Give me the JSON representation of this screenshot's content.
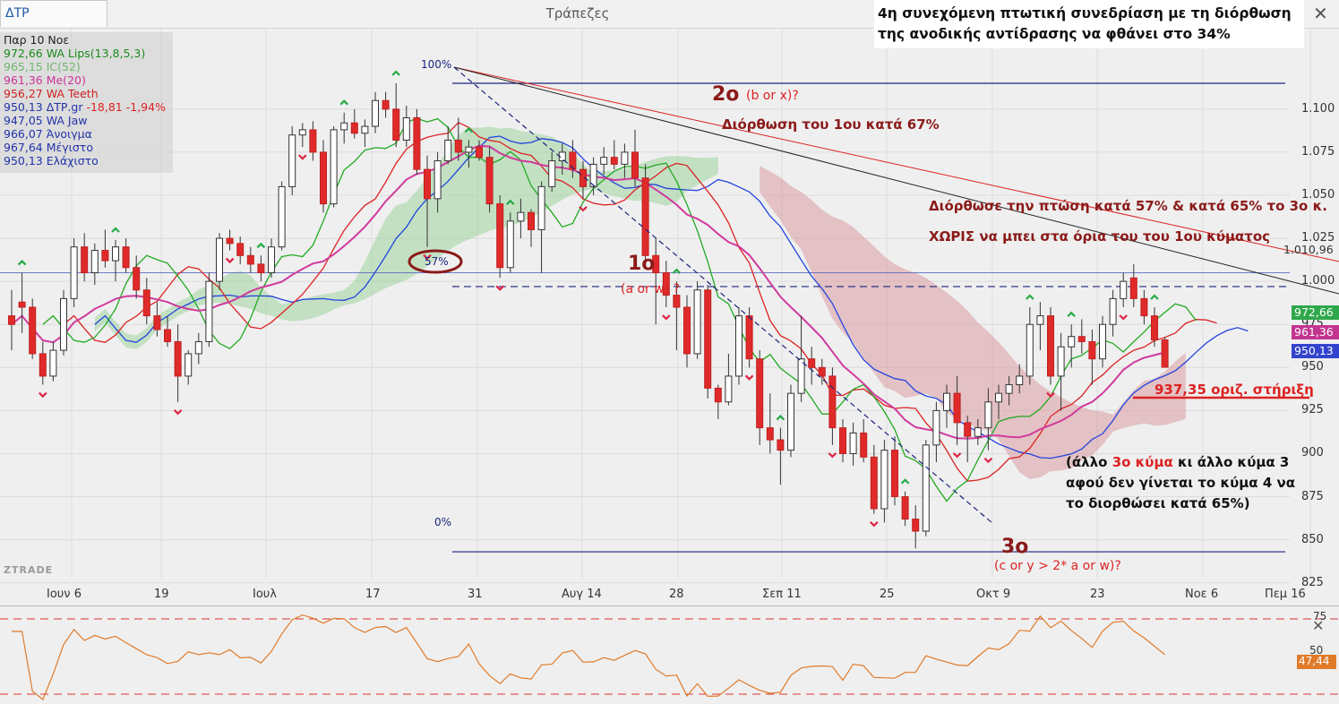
{
  "app": {
    "tab_label": "ΔΤΡ",
    "window_title": "Τράπεζες"
  },
  "note": {
    "line1": "4η συνεχόμενη πτωτική συνεδρίαση με τη διόρθωση",
    "line2": "της ανοδικής αντίδρασης να φθάνει στο 34%"
  },
  "legend": [
    {
      "text": "Παρ 10 Νοε",
      "color": "#222222"
    },
    {
      "text": "972,66 WA Lips(13,8,5,3)",
      "color": "#1a8a1a"
    },
    {
      "text": "965,15 IC(52)",
      "color": "#6fb86f"
    },
    {
      "text": "961,36 Me(20)",
      "color": "#cc3399"
    },
    {
      "text": "956,27 WA  Teeth",
      "color": "#cc2222"
    },
    {
      "text": "950,13 ΔΤΡ.gr -18,81 -1,94%",
      "color": "#2233aa"
    },
    {
      "text": "947,05 WA Jaw",
      "color": "#2233aa"
    },
    {
      "text": "966,07 Άνοιγμα",
      "color": "#2233aa"
    },
    {
      "text": "967,64 Μέγιστο",
      "color": "#2233aa"
    },
    {
      "text": "950,13 Ελάχιστο",
      "color": "#2233aa"
    }
  ],
  "change_color": "#dd2222",
  "annotations": {
    "fib_100": "100%",
    "fib_57": "57%",
    "fib_0": "0%",
    "wave2": "2ο",
    "wave2_sub": "(b or x)?",
    "wave2_corr": "Διόρθωση του 1ου κατά 67%",
    "wave1": "1ο",
    "wave1_sub": "(a or w) ?",
    "wave3": "3ο",
    "wave3_sub": "(c or y > 2* a or w)?",
    "corr_line1": "Διόρθωσε την πτώση κατά 57% & κατά 65% το 3ο κ.",
    "corr_line2": "ΧΩΡΙΣ να μπει στα όρια του του 1ου κύματος",
    "support": "937,35 οριζ. στήριξη",
    "other1_pre": "(άλλο ",
    "other1_red": "3ο κύμα",
    "other1_post": " κι άλλο κύμα 3",
    "other2": "αφού δεν γίνεται το κύμα 4 να",
    "other3": "το διορθώσει κατά 65%)",
    "watermark": "ZTRADE"
  },
  "colors": {
    "dark_red": "#8b1a1a",
    "red": "#dd2222",
    "navy": "#1a237e",
    "cloud": "#9fd39f",
    "pink_cloud": "#d99aa0"
  },
  "price_axis": {
    "ticks": [
      "1.100",
      "1.075",
      "1.050",
      "1.025",
      "1.000",
      "975",
      "950",
      "925",
      "900",
      "875",
      "850",
      "825"
    ],
    "extra_label": "1.010,96",
    "tags": [
      {
        "text": "972,66",
        "color": "#2ea84a"
      },
      {
        "text": "961,36",
        "color": "#c2358f"
      },
      {
        "text": "950,13",
        "color": "#3344cc"
      }
    ]
  },
  "time_axis": [
    "Ιουν 6",
    "19",
    "Ιουλ",
    "17",
    "31",
    "Αυγ 14",
    "28",
    "Σεπ 11",
    "25",
    "Οκτ 9",
    "23",
    "Νοε 6",
    "Πεμ 16"
  ],
  "oscillator": {
    "upper_label": "75",
    "mid_label": "50",
    "last_value": "47,44",
    "tag_color": "#e07b2a"
  },
  "chart_data": {
    "type": "candlestick",
    "ylim": [
      816,
      1128
    ],
    "series_name": "ΔΤΡ.gr",
    "candles": [
      {
        "o": 980,
        "h": 995,
        "l": 960,
        "c": 975
      },
      {
        "o": 988,
        "h": 1005,
        "l": 970,
        "c": 985
      },
      {
        "o": 985,
        "h": 990,
        "l": 955,
        "c": 958
      },
      {
        "o": 958,
        "h": 965,
        "l": 940,
        "c": 945
      },
      {
        "o": 945,
        "h": 965,
        "l": 942,
        "c": 960
      },
      {
        "o": 960,
        "h": 995,
        "l": 957,
        "c": 990
      },
      {
        "o": 990,
        "h": 1025,
        "l": 985,
        "c": 1020
      },
      {
        "o": 1020,
        "h": 1028,
        "l": 1000,
        "c": 1005
      },
      {
        "o": 1005,
        "h": 1022,
        "l": 998,
        "c": 1018
      },
      {
        "o": 1018,
        "h": 1030,
        "l": 1008,
        "c": 1012
      },
      {
        "o": 1012,
        "h": 1024,
        "l": 1000,
        "c": 1020
      },
      {
        "o": 1020,
        "h": 1025,
        "l": 1005,
        "c": 1008
      },
      {
        "o": 1008,
        "h": 1015,
        "l": 990,
        "c": 995
      },
      {
        "o": 995,
        "h": 1002,
        "l": 975,
        "c": 980
      },
      {
        "o": 980,
        "h": 988,
        "l": 968,
        "c": 972
      },
      {
        "o": 972,
        "h": 980,
        "l": 962,
        "c": 965
      },
      {
        "o": 965,
        "h": 975,
        "l": 930,
        "c": 945
      },
      {
        "o": 945,
        "h": 960,
        "l": 940,
        "c": 958
      },
      {
        "o": 958,
        "h": 970,
        "l": 952,
        "c": 965
      },
      {
        "o": 965,
        "h": 1005,
        "l": 962,
        "c": 1000
      },
      {
        "o": 1000,
        "h": 1028,
        "l": 995,
        "c": 1025
      },
      {
        "o": 1025,
        "h": 1030,
        "l": 1018,
        "c": 1022
      },
      {
        "o": 1022,
        "h": 1026,
        "l": 1010,
        "c": 1015
      },
      {
        "o": 1015,
        "h": 1020,
        "l": 1005,
        "c": 1010
      },
      {
        "o": 1010,
        "h": 1015,
        "l": 1000,
        "c": 1005
      },
      {
        "o": 1005,
        "h": 1025,
        "l": 1002,
        "c": 1020
      },
      {
        "o": 1020,
        "h": 1058,
        "l": 1018,
        "c": 1055
      },
      {
        "o": 1055,
        "h": 1090,
        "l": 1050,
        "c": 1085
      },
      {
        "o": 1085,
        "h": 1092,
        "l": 1078,
        "c": 1088
      },
      {
        "o": 1088,
        "h": 1093,
        "l": 1070,
        "c": 1075
      },
      {
        "o": 1075,
        "h": 1082,
        "l": 1040,
        "c": 1045
      },
      {
        "o": 1045,
        "h": 1090,
        "l": 1043,
        "c": 1088
      },
      {
        "o": 1088,
        "h": 1098,
        "l": 1080,
        "c": 1092
      },
      {
        "o": 1092,
        "h": 1100,
        "l": 1083,
        "c": 1086
      },
      {
        "o": 1086,
        "h": 1094,
        "l": 1078,
        "c": 1090
      },
      {
        "o": 1090,
        "h": 1110,
        "l": 1086,
        "c": 1105
      },
      {
        "o": 1105,
        "h": 1110,
        "l": 1095,
        "c": 1100
      },
      {
        "o": 1100,
        "h": 1115,
        "l": 1078,
        "c": 1082
      },
      {
        "o": 1082,
        "h": 1102,
        "l": 1078,
        "c": 1095
      },
      {
        "o": 1095,
        "h": 1100,
        "l": 1062,
        "c": 1065
      },
      {
        "o": 1065,
        "h": 1073,
        "l": 1020,
        "c": 1048
      },
      {
        "o": 1048,
        "h": 1075,
        "l": 1040,
        "c": 1070
      },
      {
        "o": 1070,
        "h": 1090,
        "l": 1068,
        "c": 1082
      },
      {
        "o": 1082,
        "h": 1095,
        "l": 1070,
        "c": 1075
      },
      {
        "o": 1075,
        "h": 1082,
        "l": 1066,
        "c": 1078
      },
      {
        "o": 1078,
        "h": 1082,
        "l": 1070,
        "c": 1072
      },
      {
        "o": 1072,
        "h": 1078,
        "l": 1040,
        "c": 1045
      },
      {
        "o": 1045,
        "h": 1050,
        "l": 1002,
        "c": 1008
      },
      {
        "o": 1008,
        "h": 1040,
        "l": 1005,
        "c": 1035
      },
      {
        "o": 1035,
        "h": 1048,
        "l": 1025,
        "c": 1040
      },
      {
        "o": 1040,
        "h": 1042,
        "l": 1020,
        "c": 1030
      },
      {
        "o": 1030,
        "h": 1058,
        "l": 1005,
        "c": 1055
      },
      {
        "o": 1055,
        "h": 1075,
        "l": 1052,
        "c": 1070
      },
      {
        "o": 1070,
        "h": 1080,
        "l": 1062,
        "c": 1075
      },
      {
        "o": 1075,
        "h": 1082,
        "l": 1060,
        "c": 1065
      },
      {
        "o": 1065,
        "h": 1070,
        "l": 1048,
        "c": 1055
      },
      {
        "o": 1055,
        "h": 1072,
        "l": 1050,
        "c": 1068
      },
      {
        "o": 1068,
        "h": 1078,
        "l": 1062,
        "c": 1072
      },
      {
        "o": 1072,
        "h": 1082,
        "l": 1065,
        "c": 1068
      },
      {
        "o": 1068,
        "h": 1080,
        "l": 1060,
        "c": 1075
      },
      {
        "o": 1075,
        "h": 1088,
        "l": 1055,
        "c": 1060
      },
      {
        "o": 1060,
        "h": 1068,
        "l": 1010,
        "c": 1015
      },
      {
        "o": 1015,
        "h": 1025,
        "l": 975,
        "c": 1005
      },
      {
        "o": 1005,
        "h": 1012,
        "l": 985,
        "c": 992
      },
      {
        "o": 992,
        "h": 1000,
        "l": 960,
        "c": 985
      },
      {
        "o": 985,
        "h": 992,
        "l": 950,
        "c": 958
      },
      {
        "o": 958,
        "h": 1000,
        "l": 955,
        "c": 995
      },
      {
        "o": 995,
        "h": 998,
        "l": 932,
        "c": 938
      },
      {
        "o": 938,
        "h": 940,
        "l": 920,
        "c": 930
      },
      {
        "o": 930,
        "h": 958,
        "l": 928,
        "c": 945
      },
      {
        "o": 945,
        "h": 985,
        "l": 940,
        "c": 980
      },
      {
        "o": 980,
        "h": 985,
        "l": 950,
        "c": 955
      },
      {
        "o": 955,
        "h": 960,
        "l": 905,
        "c": 915
      },
      {
        "o": 915,
        "h": 935,
        "l": 900,
        "c": 908
      },
      {
        "o": 908,
        "h": 915,
        "l": 882,
        "c": 902
      },
      {
        "o": 902,
        "h": 940,
        "l": 898,
        "c": 935
      },
      {
        "o": 935,
        "h": 980,
        "l": 930,
        "c": 955
      },
      {
        "o": 955,
        "h": 962,
        "l": 940,
        "c": 950
      },
      {
        "o": 950,
        "h": 955,
        "l": 940,
        "c": 945
      },
      {
        "o": 945,
        "h": 950,
        "l": 905,
        "c": 915
      },
      {
        "o": 915,
        "h": 920,
        "l": 895,
        "c": 900
      },
      {
        "o": 900,
        "h": 918,
        "l": 893,
        "c": 912
      },
      {
        "o": 912,
        "h": 920,
        "l": 895,
        "c": 898
      },
      {
        "o": 898,
        "h": 905,
        "l": 865,
        "c": 868
      },
      {
        "o": 868,
        "h": 908,
        "l": 860,
        "c": 902
      },
      {
        "o": 902,
        "h": 910,
        "l": 870,
        "c": 875
      },
      {
        "o": 875,
        "h": 878,
        "l": 858,
        "c": 862
      },
      {
        "o": 862,
        "h": 870,
        "l": 845,
        "c": 855
      },
      {
        "o": 855,
        "h": 908,
        "l": 852,
        "c": 905
      },
      {
        "o": 905,
        "h": 930,
        "l": 895,
        "c": 925
      },
      {
        "o": 925,
        "h": 940,
        "l": 915,
        "c": 935
      },
      {
        "o": 935,
        "h": 945,
        "l": 905,
        "c": 918
      },
      {
        "o": 918,
        "h": 922,
        "l": 895,
        "c": 910
      },
      {
        "o": 910,
        "h": 920,
        "l": 905,
        "c": 915
      },
      {
        "o": 915,
        "h": 938,
        "l": 902,
        "c": 930
      },
      {
        "o": 930,
        "h": 940,
        "l": 920,
        "c": 935
      },
      {
        "o": 935,
        "h": 945,
        "l": 928,
        "c": 940
      },
      {
        "o": 940,
        "h": 952,
        "l": 935,
        "c": 945
      },
      {
        "o": 945,
        "h": 985,
        "l": 940,
        "c": 975
      },
      {
        "o": 975,
        "h": 988,
        "l": 960,
        "c": 980
      },
      {
        "o": 980,
        "h": 985,
        "l": 940,
        "c": 945
      },
      {
        "o": 945,
        "h": 970,
        "l": 925,
        "c": 962
      },
      {
        "o": 962,
        "h": 975,
        "l": 950,
        "c": 968
      },
      {
        "o": 968,
        "h": 978,
        "l": 958,
        "c": 965
      },
      {
        "o": 965,
        "h": 972,
        "l": 940,
        "c": 955
      },
      {
        "o": 955,
        "h": 980,
        "l": 950,
        "c": 975
      },
      {
        "o": 975,
        "h": 995,
        "l": 968,
        "c": 990
      },
      {
        "o": 990,
        "h": 1005,
        "l": 985,
        "c": 1000
      },
      {
        "o": 1002,
        "h": 1010,
        "l": 985,
        "c": 990
      },
      {
        "o": 990,
        "h": 995,
        "l": 975,
        "c": 980
      },
      {
        "o": 980,
        "h": 985,
        "l": 962,
        "c": 966
      },
      {
        "o": 966.07,
        "h": 967.64,
        "l": 950.13,
        "c": 950.13
      }
    ]
  }
}
